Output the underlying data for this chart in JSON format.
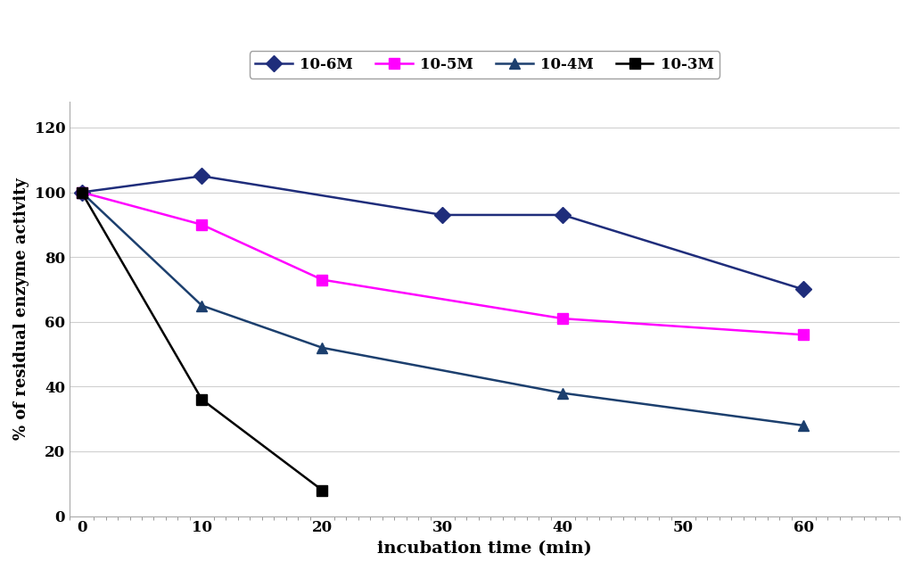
{
  "series": [
    {
      "label": "10-6M",
      "color": "#1F2D7B",
      "marker": "D",
      "x": [
        0,
        10,
        30,
        40,
        60
      ],
      "y": [
        100,
        105,
        93,
        93,
        70
      ]
    },
    {
      "label": "10-5M",
      "color": "#FF00FF",
      "marker": "s",
      "x": [
        0,
        10,
        20,
        40,
        60
      ],
      "y": [
        100,
        90,
        73,
        61,
        56
      ]
    },
    {
      "label": "10-4M",
      "color": "#1C3F6E",
      "marker": "^",
      "x": [
        0,
        10,
        20,
        40,
        60
      ],
      "y": [
        100,
        65,
        52,
        38,
        28
      ]
    },
    {
      "label": "10-3M",
      "color": "#000000",
      "marker": "s",
      "x": [
        0,
        10,
        20
      ],
      "y": [
        100,
        36,
        8
      ]
    }
  ],
  "xlabel": "incubation time (min)",
  "ylabel": "% of residual enzyme activity",
  "xlim": [
    -1,
    68
  ],
  "ylim": [
    0,
    128
  ],
  "xticks": [
    0,
    10,
    20,
    30,
    40,
    50,
    60
  ],
  "yticks": [
    0,
    20,
    40,
    60,
    80,
    100,
    120
  ],
  "figsize": [
    10.24,
    6.39
  ],
  "dpi": 100,
  "grid_color": "#d0d0d0",
  "linewidth": 1.8,
  "markersize": 9,
  "bg_color": "#ffffff"
}
